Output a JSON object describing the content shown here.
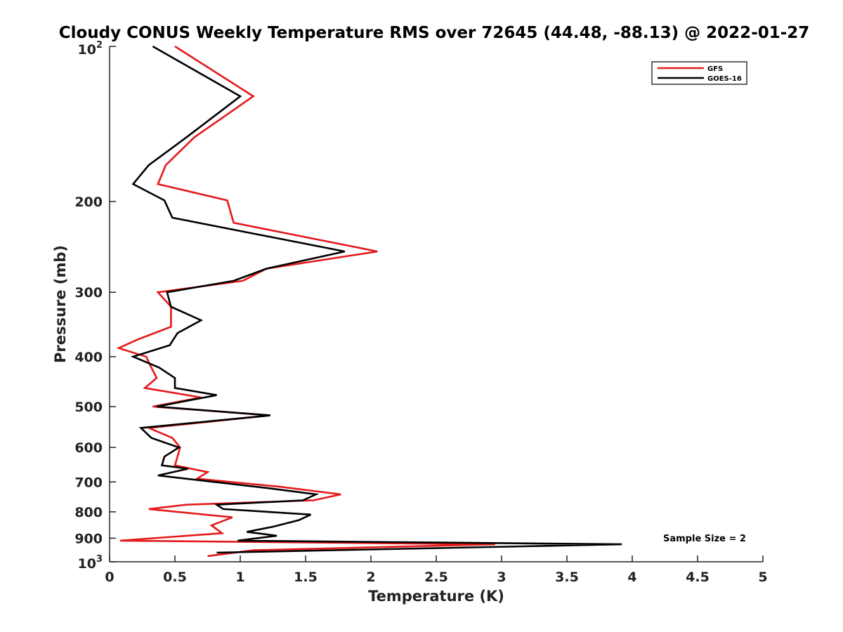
{
  "chart_data": {
    "type": "line",
    "title": "Cloudy CONUS Weekly Temperature RMS over 72645 (44.48, -88.13) @ 2022-01-27",
    "xlabel": "Temperature (K)",
    "ylabel": "Pressure (mb)",
    "xlim": [
      0,
      5
    ],
    "ylim": [
      100,
      1000
    ],
    "y_scale": "log",
    "y_reversed": true,
    "x_ticks": [
      0,
      0.5,
      1,
      1.5,
      2,
      2.5,
      3,
      3.5,
      4,
      4.5,
      5
    ],
    "x_tick_labels": [
      "0",
      "0.5",
      "1",
      "1.5",
      "2",
      "2.5",
      "3",
      "3.5",
      "4",
      "4.5",
      "5"
    ],
    "y_ticks": [
      200,
      300,
      400,
      500,
      600,
      700,
      800,
      900
    ],
    "y_tick_labels": [
      "200",
      "300",
      "400",
      "500",
      "600",
      "700",
      "800",
      "900"
    ],
    "y_tick_top": {
      "base": "10",
      "exp": "2"
    },
    "y_tick_bottom": {
      "base": "10",
      "exp": "3"
    },
    "legend_position": "top-right",
    "grid": false,
    "annotation": "Sample Size = 2",
    "series": [
      {
        "name": "GFS",
        "color": "#e41a1c",
        "points": [
          [
            0.5,
            100
          ],
          [
            1.1,
            125
          ],
          [
            0.65,
            150
          ],
          [
            0.43,
            170
          ],
          [
            0.37,
            185
          ],
          [
            0.9,
            199
          ],
          [
            0.95,
            220
          ],
          [
            2.05,
            250
          ],
          [
            1.2,
            270
          ],
          [
            1.02,
            285
          ],
          [
            0.37,
            300
          ],
          [
            0.47,
            320
          ],
          [
            0.47,
            350
          ],
          [
            0.22,
            370
          ],
          [
            0.07,
            385
          ],
          [
            0.28,
            400
          ],
          [
            0.32,
            420
          ],
          [
            0.36,
            440
          ],
          [
            0.27,
            460
          ],
          [
            0.7,
            480
          ],
          [
            0.33,
            500
          ],
          [
            1.23,
            520
          ],
          [
            0.3,
            550
          ],
          [
            0.48,
            575
          ],
          [
            0.54,
            600
          ],
          [
            0.52,
            625
          ],
          [
            0.5,
            650
          ],
          [
            0.75,
            670
          ],
          [
            0.67,
            690
          ],
          [
            1.3,
            715
          ],
          [
            1.77,
            740
          ],
          [
            1.56,
            760
          ],
          [
            0.59,
            775
          ],
          [
            0.3,
            790
          ],
          [
            0.94,
            820
          ],
          [
            0.78,
            850
          ],
          [
            0.86,
            880
          ],
          [
            0.08,
            910
          ],
          [
            2.95,
            925
          ],
          [
            1.1,
            950
          ],
          [
            0.75,
            975
          ]
        ]
      },
      {
        "name": "GOES-16",
        "color": "#000000",
        "points": [
          [
            0.33,
            100
          ],
          [
            1.0,
            125
          ],
          [
            0.59,
            150
          ],
          [
            0.3,
            170
          ],
          [
            0.18,
            185
          ],
          [
            0.42,
            199
          ],
          [
            0.48,
            215
          ],
          [
            1.8,
            250
          ],
          [
            1.2,
            270
          ],
          [
            0.95,
            285
          ],
          [
            0.44,
            300
          ],
          [
            0.47,
            320
          ],
          [
            0.7,
            340
          ],
          [
            0.52,
            360
          ],
          [
            0.46,
            380
          ],
          [
            0.18,
            400
          ],
          [
            0.38,
            420
          ],
          [
            0.5,
            440
          ],
          [
            0.5,
            460
          ],
          [
            0.82,
            475
          ],
          [
            0.36,
            500
          ],
          [
            1.23,
            520
          ],
          [
            0.24,
            550
          ],
          [
            0.32,
            575
          ],
          [
            0.53,
            600
          ],
          [
            0.42,
            625
          ],
          [
            0.4,
            650
          ],
          [
            0.6,
            660
          ],
          [
            0.37,
            680
          ],
          [
            1.22,
            720
          ],
          [
            1.58,
            740
          ],
          [
            1.48,
            760
          ],
          [
            0.82,
            775
          ],
          [
            0.87,
            790
          ],
          [
            1.54,
            810
          ],
          [
            1.45,
            830
          ],
          [
            1.25,
            855
          ],
          [
            1.05,
            875
          ],
          [
            1.28,
            890
          ],
          [
            0.98,
            910
          ],
          [
            3.92,
            925
          ],
          [
            0.82,
            960
          ]
        ]
      }
    ]
  }
}
